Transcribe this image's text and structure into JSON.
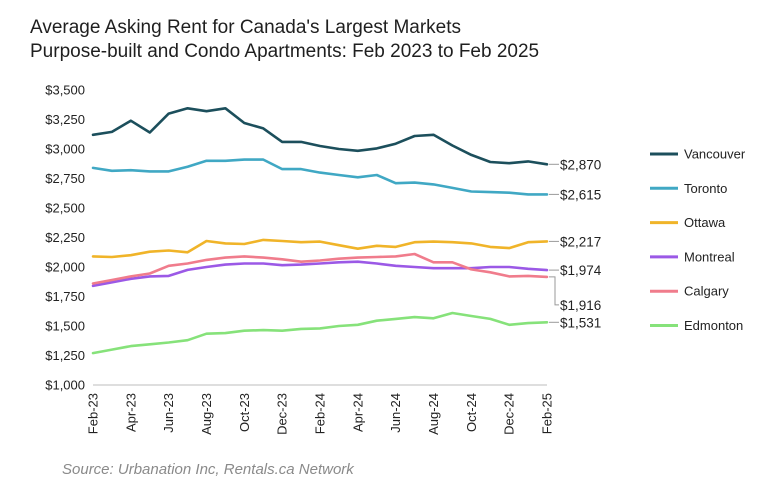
{
  "title_line1": "Average Asking Rent for Canada's Largest Markets",
  "title_line2": "Purpose-built and Condo Apartments: Feb 2023 to Feb 2025",
  "source": "Source: Urbanation Inc, Rentals.ca Network",
  "chart_data": {
    "type": "line",
    "title": "Average Asking Rent for Canada's Largest Markets Purpose-built and Condo Apartments: Feb 2023 to Feb 2025",
    "xlabel": "",
    "ylabel": "",
    "ylim": [
      1000,
      3500
    ],
    "y_ticks": [
      1000,
      1250,
      1500,
      1750,
      2000,
      2250,
      2500,
      2750,
      3000,
      3250,
      3500
    ],
    "y_tick_labels": [
      "$1,000",
      "$1,250",
      "$1,500",
      "$1,750",
      "$2,000",
      "$2,250",
      "$2,500",
      "$2,750",
      "$3,000",
      "$3,250",
      "$3,500"
    ],
    "x": [
      "Feb-23",
      "Mar-23",
      "Apr-23",
      "May-23",
      "Jun-23",
      "Jul-23",
      "Aug-23",
      "Sep-23",
      "Oct-23",
      "Nov-23",
      "Dec-23",
      "Jan-24",
      "Feb-24",
      "Mar-24",
      "Apr-24",
      "May-24",
      "Jun-24",
      "Jul-24",
      "Aug-24",
      "Sep-24",
      "Oct-24",
      "Nov-24",
      "Dec-24",
      "Jan-25",
      "Feb-25"
    ],
    "x_tick_labels": [
      "Feb-23",
      "",
      "Apr-23",
      "",
      "Jun-23",
      "",
      "Aug-23",
      "",
      "Oct-23",
      "",
      "Dec-23",
      "",
      "Feb-24",
      "",
      "Apr-24",
      "",
      "Jun-24",
      "",
      "Aug-24",
      "",
      "Oct-24",
      "",
      "Dec-24",
      "",
      "Feb-25"
    ],
    "grid": false,
    "legend_position": "right",
    "series": [
      {
        "name": "Vancouver",
        "color": "#1c4f5c",
        "end_label": "$2,870",
        "values": [
          3120,
          3145,
          3240,
          3140,
          3300,
          3345,
          3320,
          3345,
          3220,
          3175,
          3060,
          3060,
          3025,
          3000,
          2985,
          3005,
          3045,
          3110,
          3120,
          3030,
          2950,
          2890,
          2880,
          2895,
          2870
        ]
      },
      {
        "name": "Toronto",
        "color": "#40a8c4",
        "end_label": "$2,615",
        "values": [
          2840,
          2815,
          2820,
          2810,
          2810,
          2850,
          2900,
          2900,
          2910,
          2910,
          2830,
          2830,
          2800,
          2780,
          2760,
          2780,
          2710,
          2715,
          2700,
          2670,
          2640,
          2635,
          2630,
          2615,
          2615
        ]
      },
      {
        "name": "Ottawa",
        "color": "#f0b429",
        "end_label": "$2,217",
        "values": [
          2090,
          2085,
          2100,
          2130,
          2140,
          2125,
          2220,
          2200,
          2195,
          2230,
          2220,
          2210,
          2215,
          2185,
          2155,
          2180,
          2170,
          2210,
          2215,
          2210,
          2200,
          2170,
          2160,
          2210,
          2217
        ]
      },
      {
        "name": "Montreal",
        "color": "#9b59e6",
        "end_label": "$1,974",
        "values": [
          1840,
          1870,
          1900,
          1920,
          1925,
          1975,
          2000,
          2020,
          2030,
          2030,
          2015,
          2020,
          2030,
          2040,
          2045,
          2030,
          2010,
          2000,
          1990,
          1990,
          1990,
          2000,
          2000,
          1985,
          1974
        ]
      },
      {
        "name": "Calgary",
        "color": "#f07c8c",
        "end_label": "$1,916",
        "values": [
          1860,
          1890,
          1920,
          1945,
          2010,
          2030,
          2060,
          2080,
          2090,
          2080,
          2065,
          2045,
          2055,
          2070,
          2080,
          2085,
          2090,
          2110,
          2040,
          2040,
          1980,
          1955,
          1920,
          1925,
          1916
        ]
      },
      {
        "name": "Edmonton",
        "color": "#86e27a",
        "end_label": "$1,531",
        "values": [
          1270,
          1300,
          1330,
          1345,
          1360,
          1380,
          1435,
          1440,
          1460,
          1465,
          1460,
          1475,
          1480,
          1500,
          1510,
          1545,
          1560,
          1575,
          1565,
          1610,
          1585,
          1560,
          1510,
          1525,
          1531
        ]
      }
    ]
  }
}
